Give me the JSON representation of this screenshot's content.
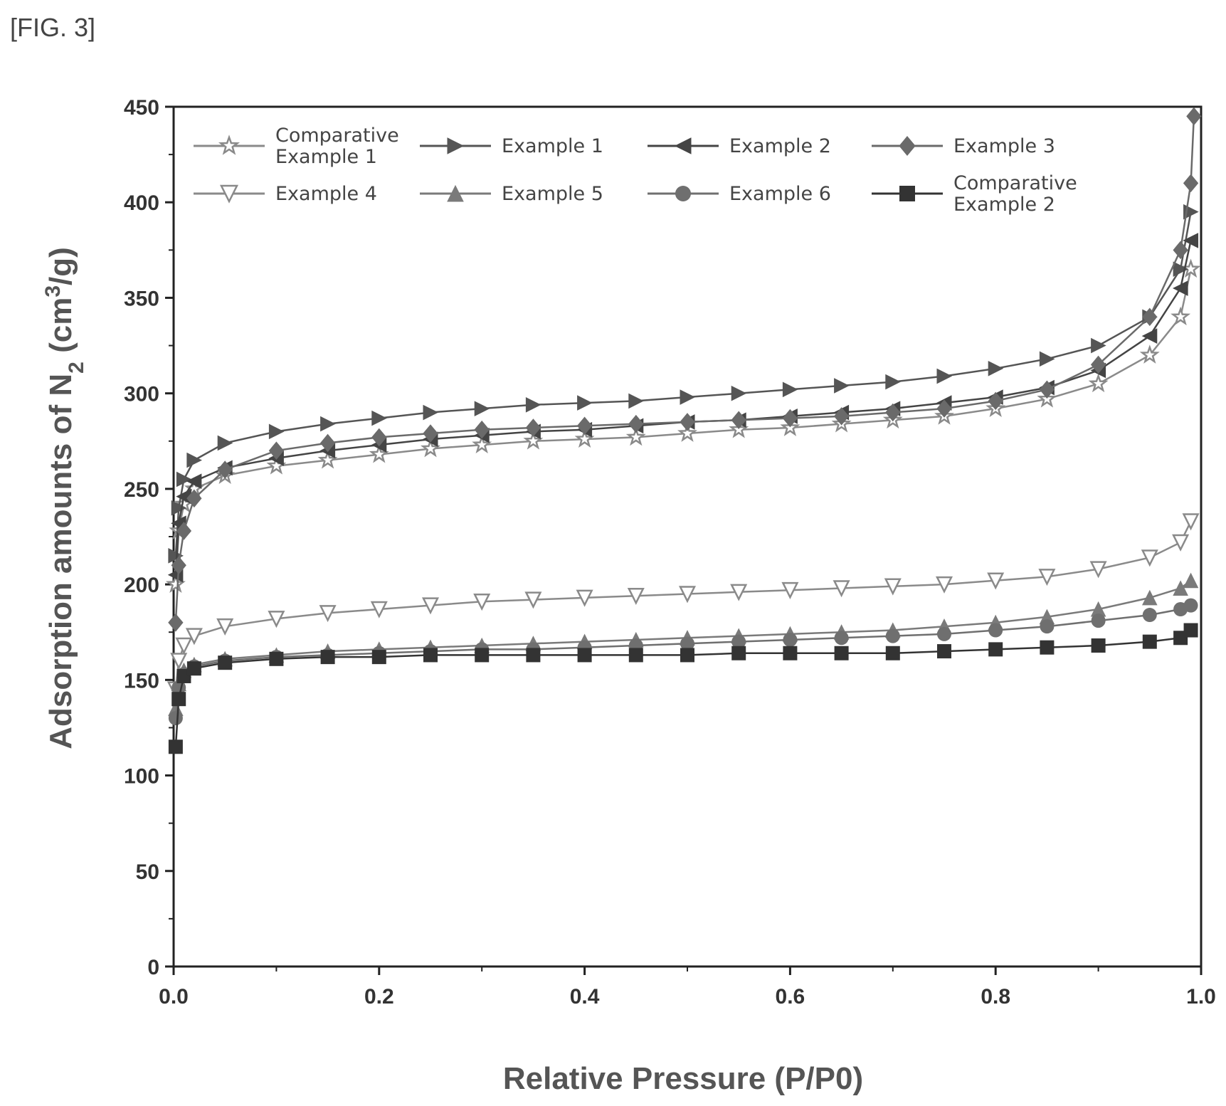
{
  "figure_label": "[FIG. 3]",
  "chart_data": {
    "type": "line",
    "xlabel": "Relative Pressure (P/P0)",
    "ylabel_parts": {
      "pre": "Adsorption amounts of N",
      "sub": "2",
      "mid": " (cm",
      "sup": "3",
      "post": "/g)"
    },
    "xlim": [
      0.0,
      1.0
    ],
    "ylim": [
      0,
      450
    ],
    "x_ticks": [
      "0.0",
      "0.2",
      "0.4",
      "0.6",
      "0.8",
      "1.0"
    ],
    "y_ticks": [
      "0",
      "50",
      "100",
      "150",
      "200",
      "250",
      "300",
      "350",
      "400",
      "450"
    ],
    "grid": false,
    "legend": {
      "placement": "top",
      "columns": 4
    },
    "series": [
      {
        "name": "Comparative Example 1",
        "legend_lines": [
          "Comparative",
          "Example 1"
        ],
        "marker": "star-open",
        "color": "#8a8a8a",
        "x": [
          0.002,
          0.005,
          0.01,
          0.02,
          0.05,
          0.1,
          0.15,
          0.2,
          0.25,
          0.3,
          0.35,
          0.4,
          0.45,
          0.5,
          0.55,
          0.6,
          0.65,
          0.7,
          0.75,
          0.8,
          0.85,
          0.9,
          0.95,
          0.98,
          0.99
        ],
        "y": [
          200,
          228,
          242,
          250,
          257,
          262,
          265,
          268,
          271,
          273,
          275,
          276,
          277,
          279,
          281,
          282,
          284,
          286,
          288,
          292,
          297,
          305,
          320,
          340,
          365
        ]
      },
      {
        "name": "Example 1",
        "legend_lines": [
          "Example 1"
        ],
        "marker": "triangle-right",
        "color": "#555555",
        "x": [
          0.002,
          0.005,
          0.01,
          0.02,
          0.05,
          0.1,
          0.15,
          0.2,
          0.25,
          0.3,
          0.35,
          0.4,
          0.45,
          0.5,
          0.55,
          0.6,
          0.65,
          0.7,
          0.75,
          0.8,
          0.85,
          0.9,
          0.95,
          0.98,
          0.99
        ],
        "y": [
          215,
          240,
          255,
          265,
          274,
          280,
          284,
          287,
          290,
          292,
          294,
          295,
          296,
          298,
          300,
          302,
          304,
          306,
          309,
          313,
          318,
          325,
          340,
          365,
          395
        ]
      },
      {
        "name": "Example 2",
        "legend_lines": [
          "Example 2"
        ],
        "marker": "triangle-left",
        "color": "#444444",
        "x": [
          0.002,
          0.005,
          0.01,
          0.02,
          0.05,
          0.1,
          0.15,
          0.2,
          0.25,
          0.3,
          0.35,
          0.4,
          0.45,
          0.5,
          0.55,
          0.6,
          0.65,
          0.7,
          0.75,
          0.8,
          0.85,
          0.9,
          0.95,
          0.98,
          0.99
        ],
        "y": [
          205,
          232,
          246,
          254,
          261,
          266,
          270,
          273,
          276,
          278,
          280,
          281,
          283,
          285,
          286,
          288,
          290,
          292,
          295,
          298,
          303,
          312,
          330,
          355,
          380
        ]
      },
      {
        "name": "Example 3",
        "legend_lines": [
          "Example 3"
        ],
        "marker": "diamond",
        "color": "#6a6a6a",
        "x": [
          0.002,
          0.005,
          0.01,
          0.02,
          0.05,
          0.1,
          0.15,
          0.2,
          0.25,
          0.3,
          0.35,
          0.4,
          0.45,
          0.5,
          0.55,
          0.6,
          0.65,
          0.7,
          0.75,
          0.8,
          0.85,
          0.9,
          0.95,
          0.98,
          0.99,
          0.993
        ],
        "y": [
          180,
          210,
          228,
          245,
          260,
          270,
          274,
          277,
          279,
          281,
          282,
          283,
          284,
          285,
          286,
          287,
          288,
          290,
          292,
          296,
          302,
          315,
          340,
          375,
          410,
          445
        ]
      },
      {
        "name": "Example 4",
        "legend_lines": [
          "Example 4"
        ],
        "marker": "triangle-down-open",
        "color": "#8a8a8a",
        "x": [
          0.002,
          0.005,
          0.01,
          0.02,
          0.05,
          0.1,
          0.15,
          0.2,
          0.25,
          0.3,
          0.35,
          0.4,
          0.45,
          0.5,
          0.55,
          0.6,
          0.65,
          0.7,
          0.75,
          0.8,
          0.85,
          0.9,
          0.95,
          0.98,
          0.99
        ],
        "y": [
          145,
          160,
          168,
          173,
          178,
          182,
          185,
          187,
          189,
          191,
          192,
          193,
          194,
          195,
          196,
          197,
          198,
          199,
          200,
          202,
          204,
          208,
          214,
          222,
          233
        ]
      },
      {
        "name": "Example 5",
        "legend_lines": [
          "Example 5"
        ],
        "marker": "triangle-up",
        "color": "#7a7a7a",
        "x": [
          0.002,
          0.005,
          0.01,
          0.02,
          0.05,
          0.1,
          0.15,
          0.2,
          0.25,
          0.3,
          0.35,
          0.4,
          0.45,
          0.5,
          0.55,
          0.6,
          0.65,
          0.7,
          0.75,
          0.8,
          0.85,
          0.9,
          0.95,
          0.98,
          0.99
        ],
        "y": [
          135,
          148,
          155,
          158,
          161,
          163,
          165,
          166,
          167,
          168,
          169,
          170,
          171,
          172,
          173,
          174,
          175,
          176,
          178,
          180,
          183,
          187,
          193,
          198,
          202
        ]
      },
      {
        "name": "Example 6",
        "legend_lines": [
          "Example 6"
        ],
        "marker": "circle",
        "color": "#6f6f6f",
        "x": [
          0.002,
          0.005,
          0.01,
          0.02,
          0.05,
          0.1,
          0.15,
          0.2,
          0.25,
          0.3,
          0.35,
          0.4,
          0.45,
          0.5,
          0.55,
          0.6,
          0.65,
          0.7,
          0.75,
          0.8,
          0.85,
          0.9,
          0.95,
          0.98,
          0.99
        ],
        "y": [
          130,
          146,
          153,
          157,
          160,
          162,
          163,
          164,
          165,
          166,
          166,
          167,
          168,
          169,
          170,
          171,
          172,
          173,
          174,
          176,
          178,
          181,
          184,
          187,
          189
        ]
      },
      {
        "name": "Comparative Example 2",
        "legend_lines": [
          "Comparative",
          "Example 2"
        ],
        "marker": "square",
        "color": "#333333",
        "x": [
          0.002,
          0.005,
          0.01,
          0.02,
          0.05,
          0.1,
          0.15,
          0.2,
          0.25,
          0.3,
          0.35,
          0.4,
          0.45,
          0.5,
          0.55,
          0.6,
          0.65,
          0.7,
          0.75,
          0.8,
          0.85,
          0.9,
          0.95,
          0.98,
          0.99
        ],
        "y": [
          115,
          140,
          152,
          156,
          159,
          161,
          162,
          162,
          163,
          163,
          163,
          163,
          163,
          163,
          164,
          164,
          164,
          164,
          165,
          166,
          167,
          168,
          170,
          172,
          176
        ]
      }
    ]
  }
}
